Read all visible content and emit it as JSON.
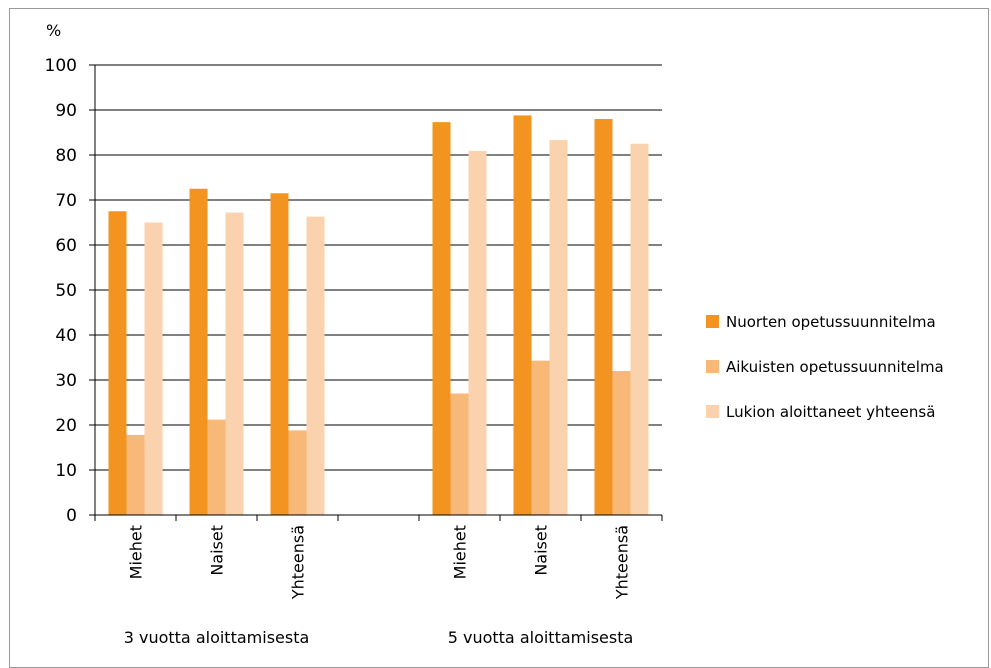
{
  "chart_data": {
    "type": "bar",
    "y_unit_label": "%",
    "ylim": [
      0,
      100
    ],
    "y_ticks": [
      0,
      10,
      20,
      30,
      40,
      50,
      60,
      70,
      80,
      90,
      100
    ],
    "grid": "horizontal",
    "legend_position": "right",
    "groups": [
      {
        "label": "3 vuotta aloittamisesta",
        "categories": [
          "Miehet",
          "Naiset",
          "Yhteensä"
        ]
      },
      {
        "label": "5 vuotta aloittamisesta",
        "categories": [
          "Miehet",
          "Naiset",
          "Yhteensä"
        ]
      }
    ],
    "series": [
      {
        "name": "Nuorten opetussuunnitelma",
        "color": "#f39420",
        "values": [
          67.5,
          72.5,
          71.5,
          87.3,
          88.8,
          88.0
        ]
      },
      {
        "name": "Aikuisten opetussuunnitelma",
        "color": "#f8b878",
        "values": [
          17.8,
          21.2,
          18.8,
          27.0,
          34.3,
          32.0
        ]
      },
      {
        "name": "Lukion aloittaneet yhteensä",
        "color": "#fbd2ae",
        "values": [
          65.0,
          67.2,
          66.3,
          80.9,
          83.3,
          82.5
        ]
      }
    ]
  }
}
